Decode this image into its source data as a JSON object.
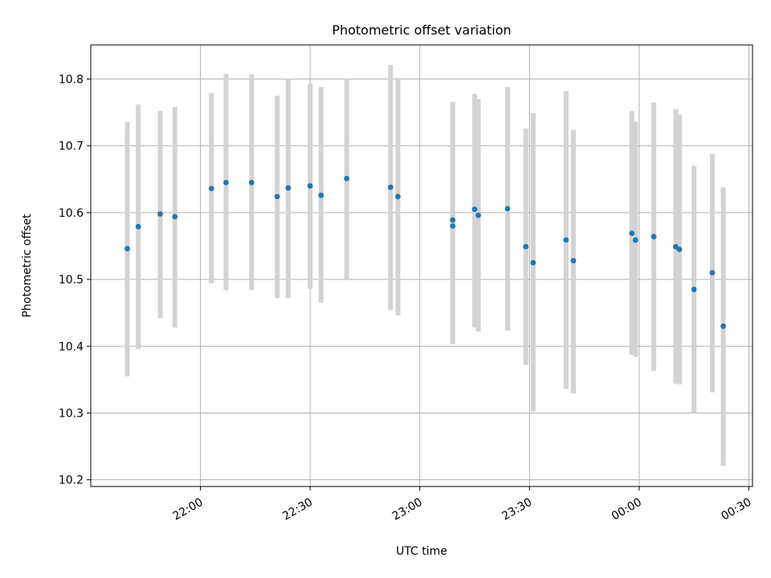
{
  "chart_data": {
    "type": "scatter",
    "title": "Photometric offset variation",
    "xlabel": "UTC time",
    "ylabel": "Photometric offset",
    "grid": true,
    "xlim": [
      "21:30",
      "00:31"
    ],
    "ylim": [
      10.19,
      10.851
    ],
    "xticks": [
      "22:00",
      "22:30",
      "23:00",
      "23:30",
      "00:00",
      "00:30"
    ],
    "yticks": [
      "10.2",
      "10.3",
      "10.4",
      "10.5",
      "10.6",
      "10.7",
      "10.8"
    ],
    "colors": {
      "point": "#1f77b4",
      "errorbar": "#d3d3d3",
      "grid": "#b0b0b0"
    },
    "series": [
      {
        "x": [
          "21:40",
          "21:43",
          "21:49",
          "21:53",
          "22:03",
          "22:07",
          "22:14",
          "22:21",
          "22:24",
          "22:30",
          "22:33",
          "22:40",
          "22:52",
          "22:54",
          "23:09",
          "23:09",
          "23:15",
          "23:16",
          "23:24",
          "23:29",
          "23:31",
          "23:40",
          "23:42",
          "23:58",
          "23:59",
          "00:04",
          "00:10",
          "00:11",
          "00:15",
          "00:20",
          "00:23"
        ],
        "y": [
          10.546,
          10.579,
          10.598,
          10.594,
          10.636,
          10.645,
          10.645,
          10.624,
          10.637,
          10.64,
          10.626,
          10.651,
          10.638,
          10.624,
          10.58,
          10.589,
          10.605,
          10.596,
          10.606,
          10.549,
          10.525,
          10.559,
          10.528,
          10.569,
          10.559,
          10.564,
          10.549,
          10.545,
          10.485,
          10.51,
          10.43
        ],
        "err_low": [
          10.355,
          10.396,
          10.442,
          10.428,
          10.494,
          10.484,
          10.484,
          10.472,
          10.472,
          10.486,
          10.465,
          10.5,
          10.454,
          10.446,
          10.403,
          10.412,
          10.428,
          10.422,
          10.423,
          10.372,
          10.302,
          10.336,
          10.329,
          10.387,
          10.384,
          10.363,
          10.344,
          10.343,
          10.3,
          10.331,
          10.221
        ],
        "err_high": [
          10.736,
          10.762,
          10.752,
          10.758,
          10.779,
          10.808,
          10.807,
          10.775,
          10.8,
          10.793,
          10.788,
          10.801,
          10.821,
          10.802,
          10.758,
          10.766,
          10.778,
          10.77,
          10.788,
          10.726,
          10.749,
          10.782,
          10.724,
          10.752,
          10.736,
          10.765,
          10.755,
          10.747,
          10.67,
          10.688,
          10.638
        ]
      }
    ]
  }
}
